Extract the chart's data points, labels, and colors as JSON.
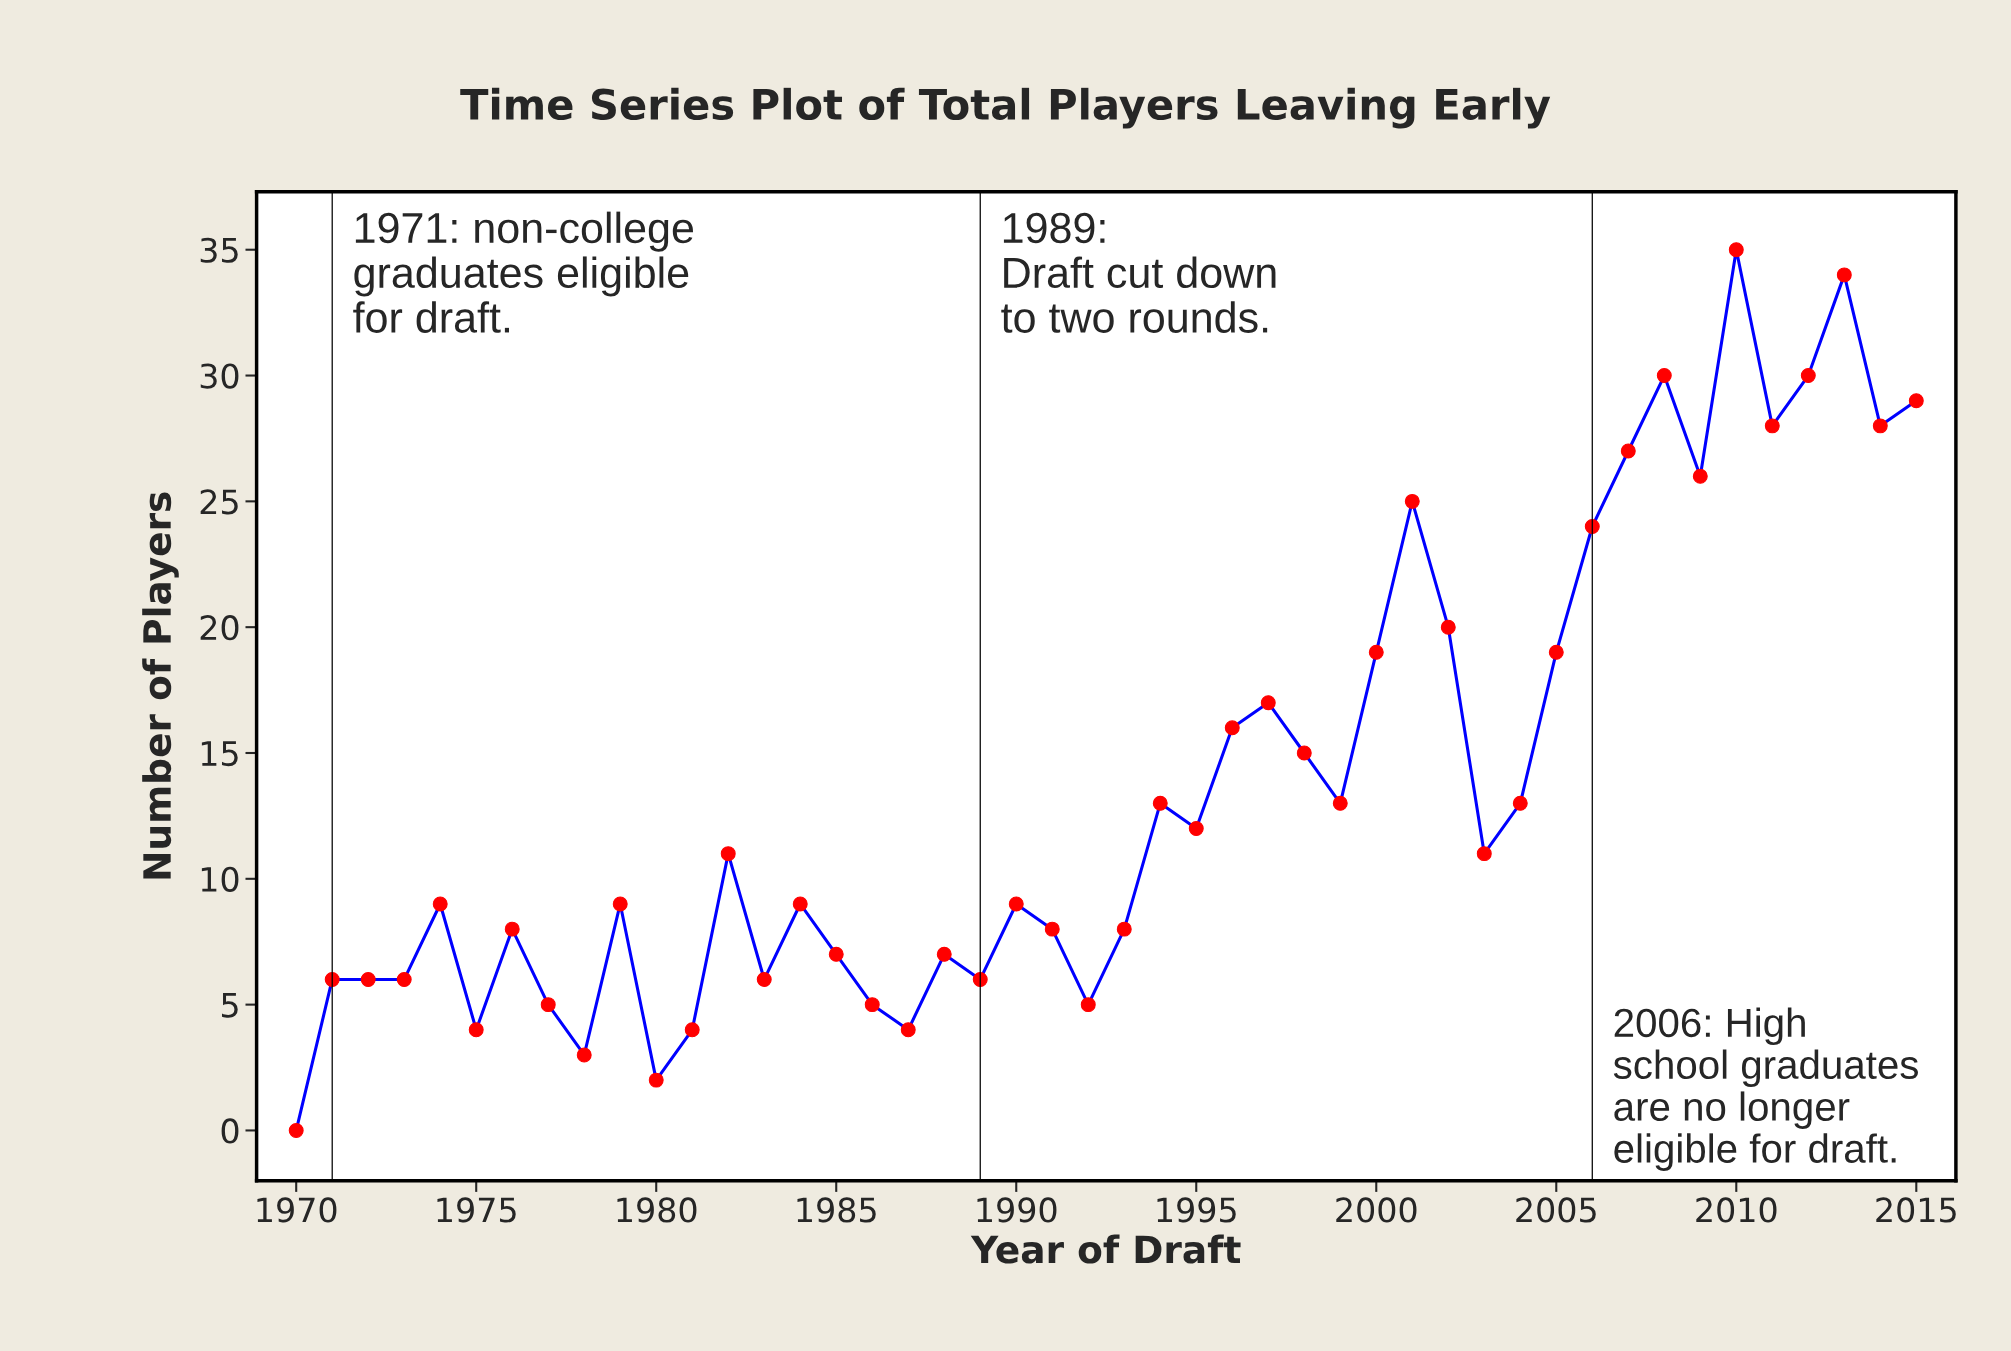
{
  "chart_data": {
    "type": "line",
    "title": "Time Series Plot of Total Players Leaving Early",
    "xlabel": "Year of Draft",
    "ylabel": "Number of Players",
    "x": [
      1970,
      1971,
      1972,
      1973,
      1974,
      1975,
      1976,
      1977,
      1978,
      1979,
      1980,
      1981,
      1982,
      1983,
      1984,
      1985,
      1986,
      1987,
      1988,
      1989,
      1990,
      1991,
      1992,
      1993,
      1994,
      1995,
      1996,
      1997,
      1998,
      1999,
      2000,
      2001,
      2002,
      2003,
      2004,
      2005,
      2006,
      2007,
      2008,
      2009,
      2010,
      2011,
      2012,
      2013,
      2014,
      2015
    ],
    "series": [
      {
        "color": "#0000ff",
        "values": [
          0,
          6,
          6,
          6,
          9,
          4,
          8,
          5,
          3,
          9,
          2,
          4,
          11,
          6,
          9,
          7,
          5,
          4,
          7,
          6,
          9,
          8,
          5,
          8,
          13,
          12,
          16,
          17,
          15,
          13,
          19,
          25,
          20,
          11,
          13,
          19,
          24,
          27,
          30,
          26,
          35,
          28,
          30,
          34,
          28,
          29
        ]
      }
    ],
    "marker": "circle",
    "line_style": "solid",
    "grid": false,
    "legend": false,
    "xlim": [
      1968.9,
      2016.1
    ],
    "xticks": [
      1970,
      1975,
      1980,
      1985,
      1990,
      1995,
      2000,
      2005,
      2010,
      2015
    ],
    "ylim": [
      -2,
      37.3
    ],
    "yticks": [
      0,
      5,
      10,
      15,
      20,
      25,
      30,
      35
    ],
    "ref_lines": [
      {
        "axis": "x",
        "value": 1971,
        "color": "#000000",
        "label": "1971: non-college\ngraduates eligible\nfor draft."
      },
      {
        "axis": "x",
        "value": 1989,
        "color": "#000000",
        "label": "1989:\nDraft cut down\nto two rounds."
      },
      {
        "axis": "x",
        "value": 2006,
        "color": "#000000",
        "label": "2006: High\nschool graduates\nare no longer\neligible for draft."
      }
    ]
  }
}
